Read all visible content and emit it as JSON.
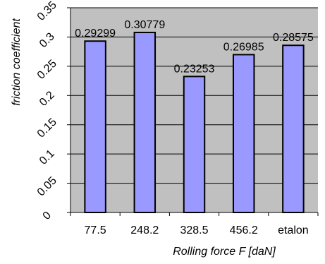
{
  "chart_data": {
    "type": "bar",
    "categories": [
      "77.5",
      "248.2",
      "328.5",
      "456.2",
      "etalon"
    ],
    "values": [
      0.29299,
      0.30779,
      0.23253,
      0.26985,
      0.28575
    ],
    "data_labels": [
      "0.29299",
      "0.30779",
      "0.23253",
      "0.26985",
      "0.28575"
    ],
    "title": "",
    "xlabel": "Rolling force F  [daN]",
    "ylabel": "friction coefficient",
    "ylim": [
      0,
      0.35
    ],
    "yticks": [
      "0",
      "0.05",
      "0.1",
      "0.15",
      "0.2",
      "0.25",
      "0.3",
      "0.35"
    ],
    "ytick_values": [
      0,
      0.05,
      0.1,
      0.15,
      0.2,
      0.25,
      0.3,
      0.35
    ],
    "grid": true,
    "legend": "none",
    "colors": {
      "bar_fill": "#9999ff",
      "bar_stroke": "#000000",
      "plot_background": "#c0c0c0",
      "gridline": "#000000"
    }
  }
}
